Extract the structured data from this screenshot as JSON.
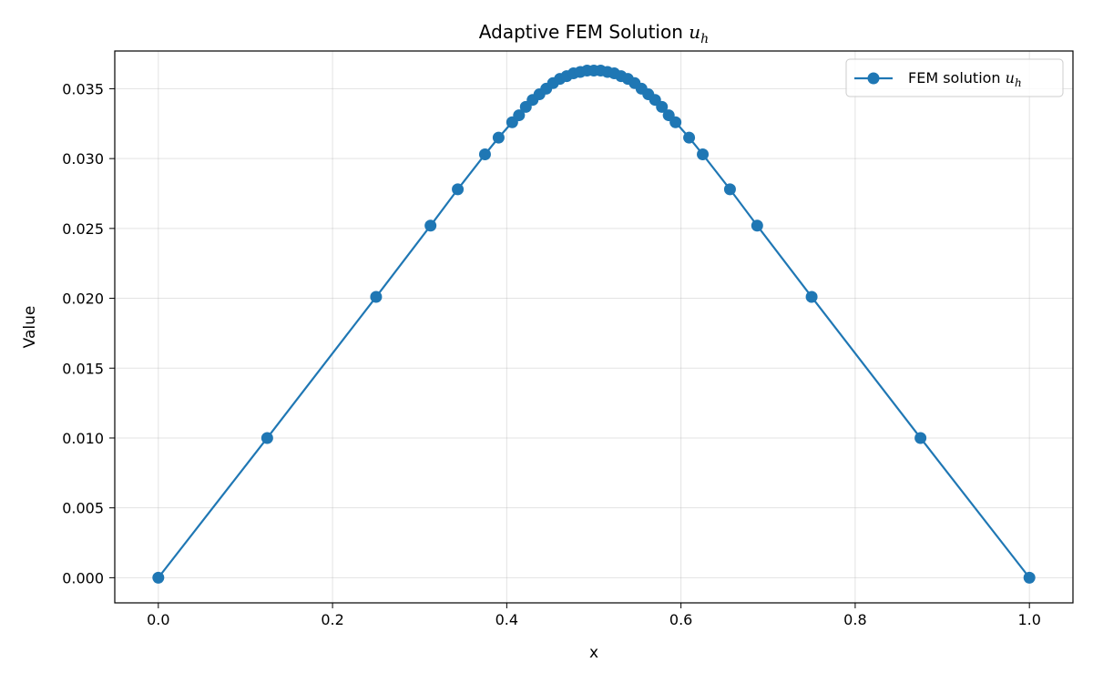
{
  "chart_data": {
    "type": "line",
    "title": "Adaptive FEM Solution",
    "title_math": "u",
    "title_math_sub": "h",
    "xlabel": "x",
    "ylabel": "Value",
    "xlim": [
      -0.05,
      1.05
    ],
    "ylim": [
      -0.0018,
      0.0377
    ],
    "xticks": [
      0.0,
      0.2,
      0.4,
      0.6,
      0.8,
      1.0
    ],
    "xtick_labels": [
      "0.0",
      "0.2",
      "0.4",
      "0.6",
      "0.8",
      "1.0"
    ],
    "yticks": [
      0.0,
      0.005,
      0.01,
      0.015,
      0.02,
      0.025,
      0.03,
      0.035
    ],
    "ytick_labels": [
      "0.000",
      "0.005",
      "0.010",
      "0.015",
      "0.020",
      "0.025",
      "0.030",
      "0.035"
    ],
    "grid": true,
    "legend_position": "upper right",
    "series": [
      {
        "name": "FEM solution",
        "name_math": "u",
        "name_math_sub": "h",
        "color": "#1f77b4",
        "marker": "circle",
        "x": [
          0.0,
          0.125,
          0.25,
          0.3125,
          0.34375,
          0.375,
          0.390625,
          0.40625,
          0.4140625,
          0.421875,
          0.4296875,
          0.4375,
          0.4453125,
          0.453125,
          0.4609375,
          0.46875,
          0.4765625,
          0.484375,
          0.4921875,
          0.5,
          0.5078125,
          0.515625,
          0.5234375,
          0.53125,
          0.5390625,
          0.546875,
          0.5546875,
          0.5625,
          0.5703125,
          0.578125,
          0.5859375,
          0.59375,
          0.609375,
          0.625,
          0.65625,
          0.6875,
          0.75,
          0.875,
          1.0
        ],
        "y": [
          0.0,
          0.01,
          0.0201,
          0.0252,
          0.0278,
          0.0303,
          0.0315,
          0.0326,
          0.0331,
          0.0337,
          0.0342,
          0.0346,
          0.035,
          0.0354,
          0.0357,
          0.0359,
          0.0361,
          0.0362,
          0.0363,
          0.0363,
          0.0363,
          0.0362,
          0.0361,
          0.0359,
          0.0357,
          0.0354,
          0.035,
          0.0346,
          0.0342,
          0.0337,
          0.0331,
          0.0326,
          0.0315,
          0.0303,
          0.0278,
          0.0252,
          0.0201,
          0.01,
          0.0
        ]
      }
    ]
  }
}
